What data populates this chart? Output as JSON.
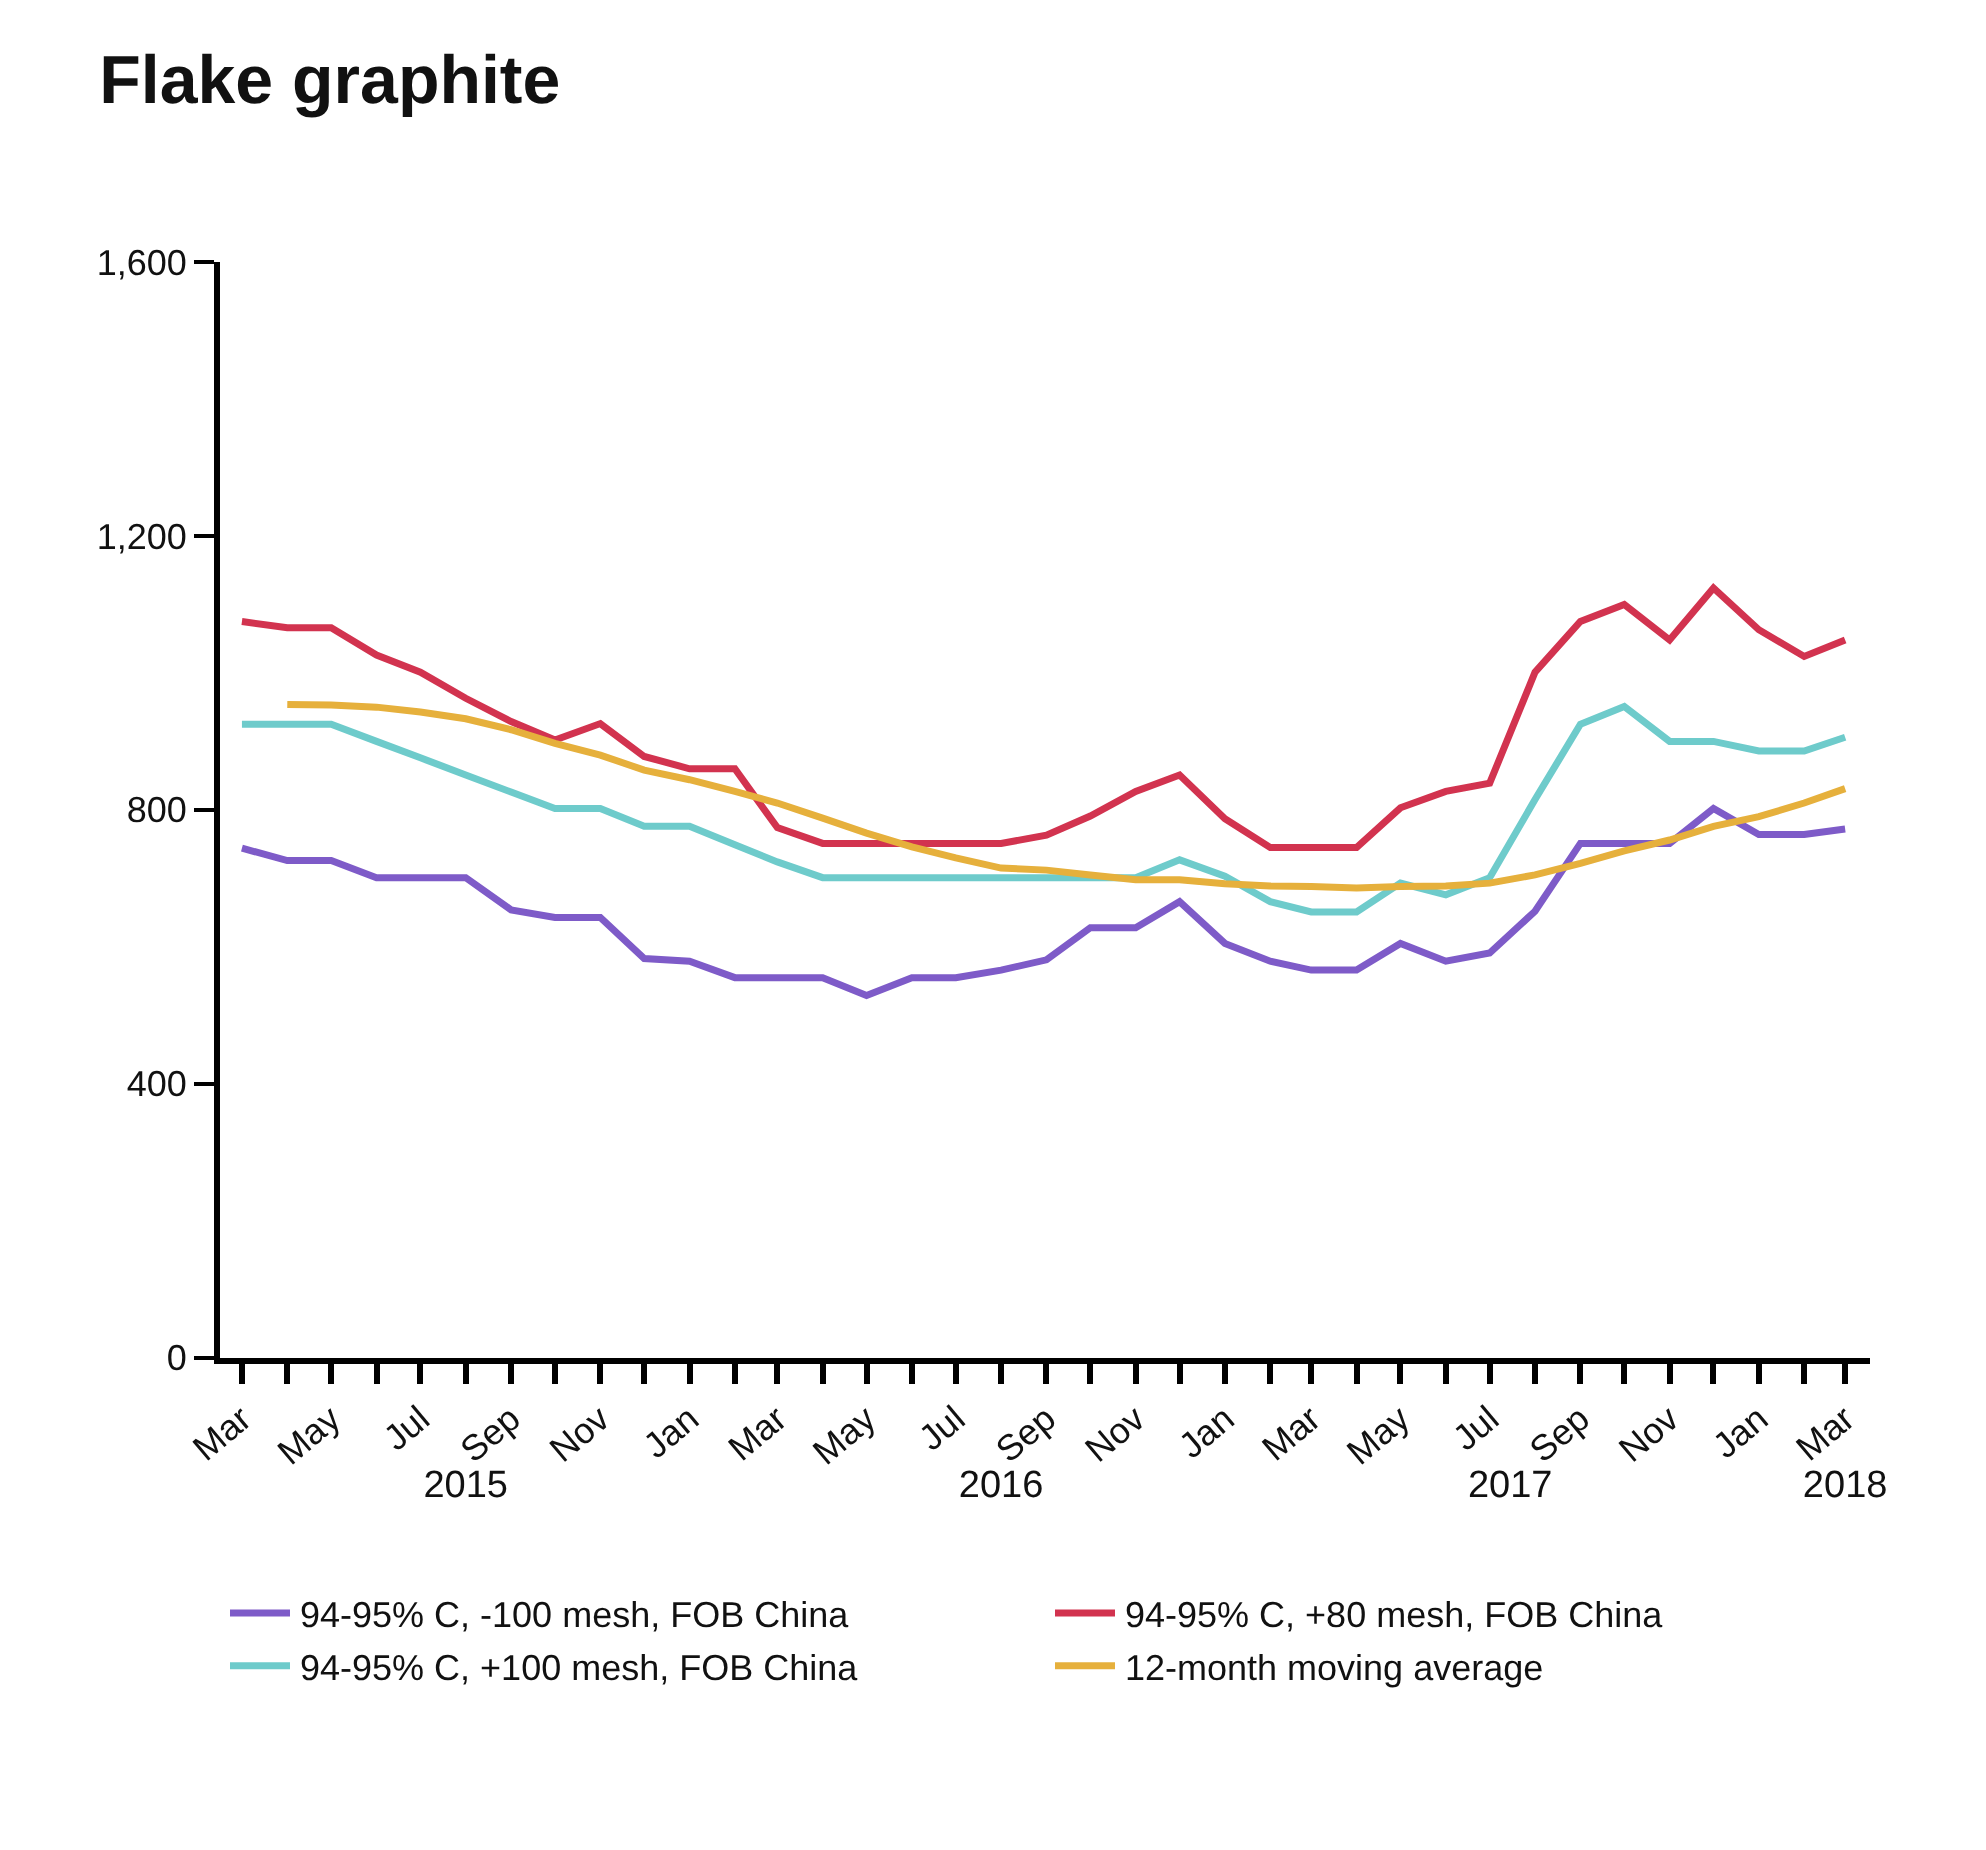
{
  "chart_data": {
    "type": "line",
    "title": "Flake graphite",
    "x": [
      "2015-03",
      "2015-04",
      "2015-05",
      "2015-06",
      "2015-07",
      "2015-08",
      "2015-09",
      "2015-10",
      "2015-11",
      "2015-12",
      "2016-01",
      "2016-02",
      "2016-03",
      "2016-04",
      "2016-05",
      "2016-06",
      "2016-07",
      "2016-08",
      "2016-09",
      "2016-10",
      "2016-11",
      "2016-12",
      "2017-01",
      "2017-02",
      "2017-03",
      "2017-04",
      "2017-05",
      "2017-06",
      "2017-07",
      "2017-08",
      "2017-09",
      "2017-10",
      "2017-11",
      "2017-12",
      "2018-01",
      "2018-02",
      "2018-03"
    ],
    "series": [
      {
        "name": "94-95% C, -100 mesh, FOB China",
        "color": "#7e5bc8",
        "values": [
          744,
          726,
          726,
          701,
          701,
          701,
          654,
          643,
          643,
          583,
          579,
          555,
          555,
          555,
          529,
          555,
          555,
          566,
          581,
          628,
          628,
          666,
          605,
          579,
          566,
          566,
          605,
          579,
          591,
          652,
          751,
          751,
          751,
          802,
          764,
          764,
          772
        ]
      },
      {
        "name": "94-95% C, +80 mesh, FOB China",
        "color": "#d2334f",
        "values": [
          1075,
          1066,
          1066,
          1026,
          1001,
          963,
          929,
          902,
          926,
          878,
          860,
          860,
          774,
          751,
          751,
          751,
          751,
          751,
          763,
          791,
          827,
          851,
          787,
          745,
          745,
          745,
          803,
          827,
          839,
          1001,
          1075,
          1100,
          1048,
          1124,
          1063,
          1024,
          1048
        ]
      },
      {
        "name": "94-95% C, +100 mesh, FOB China",
        "color": "#6ecbcb",
        "values": [
          925,
          925,
          925,
          900,
          876,
          851,
          826,
          802,
          802,
          776,
          776,
          749,
          724,
          701,
          701,
          701,
          701,
          701,
          701,
          701,
          701,
          727,
          703,
          666,
          651,
          651,
          693,
          676,
          701,
          815,
          925,
          951,
          900,
          900,
          886,
          886,
          906
        ]
      },
      {
        "name": "12-month moving average",
        "color": "#e6b03c",
        "values": [
          null,
          954,
          953,
          950,
          943,
          933,
          917,
          897,
          880,
          858,
          844,
          827,
          810,
          788,
          766,
          746,
          730,
          715,
          712,
          705,
          698,
          698,
          692,
          689,
          688,
          686,
          688,
          689,
          693,
          705,
          722,
          740,
          756,
          776,
          790,
          810,
          831
        ]
      }
    ],
    "xlim": [
      "2015-02-14",
      "2018-03-18"
    ],
    "xticks": [
      {
        "value": "2015-03",
        "label": "Mar"
      },
      {
        "value": "2015-04",
        "label": null
      },
      {
        "value": "2015-05",
        "label": "May"
      },
      {
        "value": "2015-06",
        "label": null
      },
      {
        "value": "2015-07",
        "label": "Jul"
      },
      {
        "value": "2015-08",
        "label": null
      },
      {
        "value": "2015-09",
        "label": "Sep"
      },
      {
        "value": "2015-10",
        "label": null
      },
      {
        "value": "2015-11",
        "label": "Nov"
      },
      {
        "value": "2015-12",
        "label": null
      },
      {
        "value": "2016-01",
        "label": "Jan"
      },
      {
        "value": "2016-02",
        "label": null
      },
      {
        "value": "2016-03",
        "label": "Mar"
      },
      {
        "value": "2016-04",
        "label": null
      },
      {
        "value": "2016-05",
        "label": "May"
      },
      {
        "value": "2016-06",
        "label": null
      },
      {
        "value": "2016-07",
        "label": "Jul"
      },
      {
        "value": "2016-08",
        "label": null
      },
      {
        "value": "2016-09",
        "label": "Sep"
      },
      {
        "value": "2016-10",
        "label": null
      },
      {
        "value": "2016-11",
        "label": "Nov"
      },
      {
        "value": "2016-12",
        "label": null
      },
      {
        "value": "2017-01",
        "label": "Jan"
      },
      {
        "value": "2017-02",
        "label": null
      },
      {
        "value": "2017-03",
        "label": "Mar"
      },
      {
        "value": "2017-04",
        "label": null
      },
      {
        "value": "2017-05",
        "label": "May"
      },
      {
        "value": "2017-06",
        "label": null
      },
      {
        "value": "2017-07",
        "label": "Jul"
      },
      {
        "value": "2017-08",
        "label": null
      },
      {
        "value": "2017-09",
        "label": "Sep"
      },
      {
        "value": "2017-10",
        "label": null
      },
      {
        "value": "2017-11",
        "label": "Nov"
      },
      {
        "value": "2017-12",
        "label": null
      },
      {
        "value": "2018-01",
        "label": "Jan"
      },
      {
        "value": "2018-02",
        "label": null
      },
      {
        "value": "2018-03",
        "label": "Mar"
      }
    ],
    "ylim": [
      0,
      1600
    ],
    "yticks": [
      0,
      400,
      800,
      {
        "value": 1200,
        "label": "1,200"
      },
      {
        "value": 1600,
        "label": "1,600"
      }
    ],
    "x2lim": [
      "2015-02-14",
      "2018-03-18"
    ],
    "x2ticks": [
      {
        "value": "2015-08",
        "label": "2015"
      },
      {
        "value": "2016-08",
        "label": "2016"
      },
      {
        "value": "2017-07-15",
        "label": "2017"
      },
      {
        "value": "2018-03",
        "label": "2018"
      }
    ],
    "grid": false,
    "legend": "bottom",
    "marker": "none",
    "line_style": "solid"
  }
}
